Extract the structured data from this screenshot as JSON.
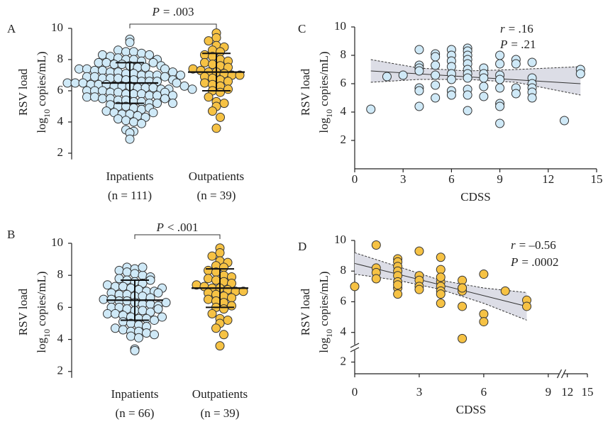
{
  "chart_data": [
    {
      "type": "strip",
      "panel": "A",
      "ylabel": "RSV load",
      "ylabel2": {
        "text": "log",
        "sub": "10",
        "rest": "copies/mL)"
      },
      "ylim": [
        1.6,
        10
      ],
      "yticks": [
        2,
        4,
        6,
        8,
        10
      ],
      "groups": [
        {
          "label": "Inpatients",
          "n_label": "(n = 111)",
          "color": "#cfe9f7",
          "mean": 6.5,
          "sd": 1.3,
          "values": [
            9.3,
            9.1,
            8.6,
            8.5,
            8.5,
            8.4,
            8.3,
            8.2,
            8.1,
            8.0,
            8.0,
            7.9,
            7.8,
            7.8,
            7.7,
            7.7,
            7.6,
            7.5,
            7.5,
            7.4,
            7.4,
            7.3,
            7.3,
            7.2,
            7.2,
            7.1,
            7.1,
            7.0,
            7.0,
            7.0,
            6.9,
            6.9,
            6.8,
            6.8,
            6.8,
            6.7,
            6.7,
            6.6,
            6.6,
            6.6,
            6.5,
            6.5,
            6.5,
            6.4,
            6.4,
            6.4,
            6.3,
            6.3,
            6.3,
            6.2,
            6.2,
            6.2,
            6.1,
            6.1,
            6.0,
            6.0,
            6.0,
            5.9,
            5.9,
            5.8,
            5.8,
            5.8,
            5.7,
            5.7,
            5.6,
            5.6,
            5.5,
            5.5,
            5.4,
            5.4,
            5.3,
            5.3,
            5.2,
            5.2,
            5.1,
            5.0,
            5.0,
            4.9,
            4.8,
            4.7,
            4.6,
            4.5,
            4.5,
            4.4,
            4.3,
            4.2,
            4.1,
            4.0,
            3.9,
            3.5,
            3.4,
            3.3,
            2.9,
            8.3,
            8.0,
            7.8,
            7.6,
            7.4,
            7.2,
            7.0,
            6.9,
            6.7,
            6.5,
            6.3,
            6.1,
            5.9,
            5.7,
            5.5,
            5.2,
            4.9,
            4.6
          ]
        },
        {
          "label": "Outpatients",
          "n_label": "(n = 39)",
          "color": "#f6c244",
          "mean": 7.2,
          "sd": 1.2,
          "values": [
            9.7,
            9.4,
            9.2,
            8.9,
            8.8,
            8.6,
            8.5,
            8.3,
            8.2,
            8.0,
            7.9,
            7.8,
            7.7,
            7.6,
            7.5,
            7.4,
            7.3,
            7.2,
            7.2,
            7.1,
            7.0,
            7.0,
            6.9,
            6.8,
            6.7,
            6.6,
            6.5,
            6.4,
            6.3,
            6.1,
            6.0,
            5.9,
            5.6,
            5.3,
            5.2,
            5.0,
            4.7,
            4.3,
            3.6
          ]
        }
      ],
      "comparison": {
        "symbol": "P",
        "text": "= .003"
      }
    },
    {
      "type": "strip",
      "panel": "B",
      "ylabel": "RSV load",
      "ylabel2": {
        "text": "log",
        "sub": "10",
        "rest": "copies/mL)"
      },
      "ylim": [
        1.6,
        10
      ],
      "yticks": [
        2,
        4,
        6,
        8,
        10
      ],
      "groups": [
        {
          "label": "Inpatients",
          "n_label": "(n = 66)",
          "color": "#cfe9f7",
          "mean": 6.45,
          "sd": 1.25,
          "values": [
            8.5,
            8.4,
            8.3,
            8.2,
            8.1,
            8.0,
            7.9,
            7.8,
            7.7,
            7.6,
            7.5,
            7.4,
            7.3,
            7.3,
            7.2,
            7.1,
            7.0,
            7.0,
            6.9,
            6.8,
            6.8,
            6.7,
            6.7,
            6.6,
            6.5,
            6.5,
            6.4,
            6.4,
            6.3,
            6.2,
            6.2,
            6.1,
            6.0,
            6.0,
            5.9,
            5.8,
            5.8,
            5.7,
            5.6,
            5.6,
            5.5,
            5.4,
            5.3,
            5.3,
            5.2,
            5.1,
            5.0,
            4.9,
            4.8,
            4.7,
            4.6,
            4.5,
            4.5,
            4.4,
            4.3,
            4.2,
            4.1,
            3.4,
            3.3,
            8.5,
            7.7,
            7.2,
            6.9,
            6.3,
            5.9,
            5.4
          ]
        },
        {
          "label": "Outpatients",
          "n_label": "(n = 39)",
          "color": "#f6c244",
          "mean": 7.2,
          "sd": 1.2,
          "values": [
            9.7,
            9.4,
            9.2,
            8.9,
            8.8,
            8.6,
            8.5,
            8.3,
            8.2,
            8.0,
            7.9,
            7.8,
            7.7,
            7.6,
            7.5,
            7.4,
            7.3,
            7.2,
            7.2,
            7.1,
            7.0,
            7.0,
            6.9,
            6.8,
            6.7,
            6.6,
            6.5,
            6.4,
            6.3,
            6.1,
            6.0,
            5.9,
            5.6,
            5.3,
            5.2,
            5.0,
            4.7,
            4.3,
            3.6
          ]
        }
      ],
      "comparison": {
        "symbol": "P",
        "text": "< .001"
      }
    },
    {
      "type": "scatter",
      "panel": "C",
      "ylabel": "RSV load",
      "ylabel2": {
        "text": "log",
        "sub": "10",
        "rest": "copies/mL)"
      },
      "xlabel": "CDSS",
      "xlim": [
        0,
        15
      ],
      "xticks": [
        0,
        3,
        6,
        9,
        12,
        15
      ],
      "ylim": [
        0,
        10
      ],
      "yticks": [
        2,
        4,
        6,
        8,
        10
      ],
      "color": "#cfe9f7",
      "x": [
        1,
        2,
        3,
        4,
        4,
        4,
        4,
        4,
        4,
        4,
        5,
        5,
        5,
        5,
        5,
        5,
        6,
        6,
        6,
        6,
        6,
        6,
        6,
        6,
        7,
        7,
        7,
        7,
        7,
        7,
        7,
        7,
        7,
        7,
        7,
        8,
        8,
        8,
        8,
        8,
        9,
        9,
        9,
        9,
        9,
        9,
        9,
        9,
        10,
        10,
        10,
        10,
        11,
        11,
        11,
        11,
        11,
        11,
        13,
        14,
        14
      ],
      "y": [
        4.2,
        6.5,
        6.6,
        8.4,
        7.3,
        7.1,
        6.9,
        5.7,
        5.5,
        4.4,
        8.1,
        7.9,
        7.3,
        6.6,
        5.9,
        5.0,
        8.4,
        8.0,
        7.6,
        7.2,
        6.7,
        6.3,
        5.5,
        5.2,
        8.5,
        8.3,
        8.0,
        7.7,
        7.4,
        7.0,
        6.7,
        6.4,
        5.6,
        5.2,
        4.1,
        7.1,
        6.7,
        6.4,
        5.8,
        5.1,
        8.0,
        7.4,
        6.6,
        6.3,
        5.7,
        4.6,
        4.4,
        3.2,
        7.7,
        7.4,
        5.7,
        5.3,
        7.5,
        6.4,
        6.0,
        5.7,
        5.4,
        5.0,
        3.4,
        7.0,
        6.7
      ],
      "fit": {
        "x": [
          1,
          14
        ],
        "y": [
          6.9,
          6.0
        ]
      },
      "ci": {
        "x": [
          1,
          4,
          7,
          10,
          14
        ],
        "upper": [
          7.7,
          7.1,
          6.9,
          7.0,
          7.2
        ],
        "lower": [
          6.1,
          6.3,
          6.3,
          6.1,
          5.2
        ]
      },
      "stats": [
        {
          "symbol": "r",
          "text": "= .16"
        },
        {
          "symbol": "P",
          "text": "= .21"
        }
      ]
    },
    {
      "type": "scatter",
      "panel": "D",
      "ylabel": "RSV load",
      "ylabel2": {
        "text": "log",
        "sub": "10",
        "rest": "copies/mL)"
      },
      "xlabel": "CDSS",
      "xlim": [
        0,
        15
      ],
      "xticks": [
        0,
        3,
        6,
        9,
        12,
        15
      ],
      "x_break": [
        9.5,
        11.5
      ],
      "ylim": [
        1.6,
        10
      ],
      "yticks": [
        2,
        4,
        6,
        8,
        10
      ],
      "y_break": [
        2.4,
        3.2
      ],
      "color": "#f6c244",
      "x": [
        0,
        1,
        1,
        1,
        1,
        2,
        2,
        2,
        2,
        2,
        2,
        2,
        2,
        2,
        3,
        3,
        3,
        3,
        3,
        4,
        4,
        4,
        4,
        4,
        4,
        4,
        4,
        5,
        5,
        5,
        5,
        5,
        5,
        6,
        6,
        6,
        7,
        8,
        8
      ],
      "y": [
        7.0,
        9.7,
        8.2,
        7.9,
        7.5,
        8.8,
        8.6,
        8.3,
        8.0,
        7.7,
        7.3,
        6.9,
        6.5,
        7.1,
        9.3,
        7.7,
        7.4,
        7.0,
        6.8,
        8.9,
        8.1,
        7.3,
        7.0,
        6.7,
        6.5,
        5.9,
        7.6,
        7.4,
        6.9,
        6.7,
        5.7,
        3.6,
        6.9,
        7.8,
        5.2,
        4.7,
        6.7,
        6.1,
        5.7
      ],
      "fit": {
        "x": [
          0,
          8
        ],
        "y": [
          8.5,
          5.7
        ]
      },
      "ci": {
        "x": [
          0,
          2,
          4,
          6,
          8
        ],
        "upper": [
          9.2,
          8.3,
          7.4,
          6.9,
          6.6
        ],
        "lower": [
          7.8,
          7.4,
          6.8,
          5.9,
          4.8
        ]
      },
      "stats": [
        {
          "symbol": "r",
          "text": "= –0.56"
        },
        {
          "symbol": "P",
          "text": "= .0002"
        }
      ]
    }
  ]
}
